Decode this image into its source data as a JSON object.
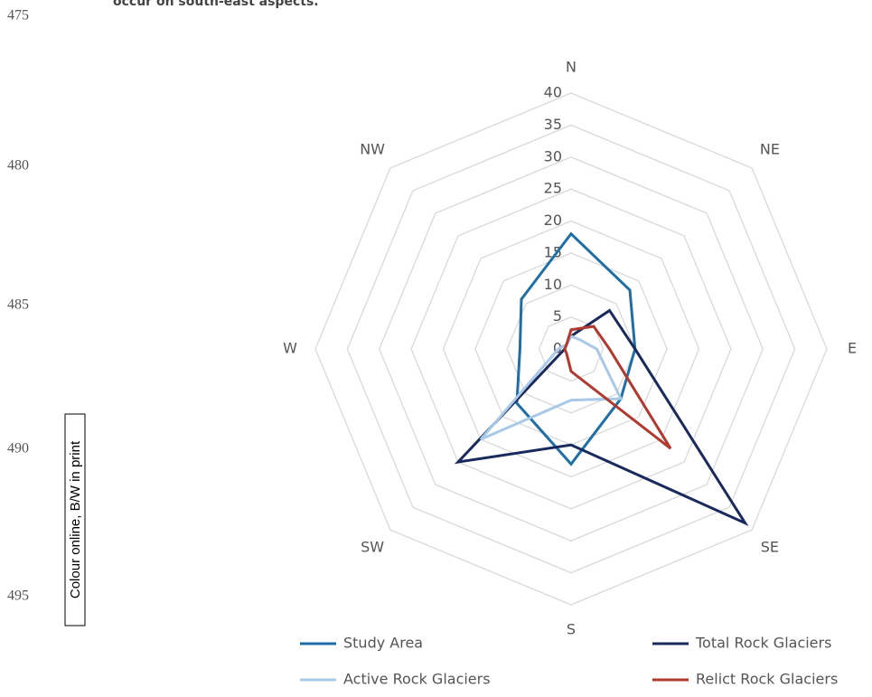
{
  "page": {
    "text_fragment": "occur on south-east aspects.",
    "line_numbers": [
      "475",
      "480",
      "485",
      "490",
      "495"
    ],
    "side_note": "Colour online, B/W in print"
  },
  "chart_data": {
    "type": "radar",
    "categories": [
      "N",
      "NE",
      "E",
      "SE",
      "S",
      "SW",
      "W",
      "NW"
    ],
    "rlim": [
      0,
      40
    ],
    "rticks": [
      0,
      5,
      10,
      15,
      20,
      25,
      30,
      35,
      40
    ],
    "grid": true,
    "legend": "bottom",
    "series": [
      {
        "name": "Study Area",
        "color": "#1f6fa6",
        "values": [
          18,
          13,
          10,
          11,
          18,
          12,
          8,
          11
        ]
      },
      {
        "name": "Total Rock Glaciers",
        "color": "#1b2a5c",
        "values": [
          2,
          8.5,
          10,
          38.5,
          15,
          25,
          1,
          1
        ]
      },
      {
        "name": "Active Rock Glaciers",
        "color": "#a9c9e8",
        "values": [
          2,
          2,
          4,
          11,
          8,
          20,
          2,
          1
        ]
      },
      {
        "name": "Relict Rock Glaciers",
        "color": "#b03a2e",
        "values": [
          3,
          5,
          6,
          22,
          3.5,
          1,
          1,
          1
        ]
      }
    ]
  }
}
